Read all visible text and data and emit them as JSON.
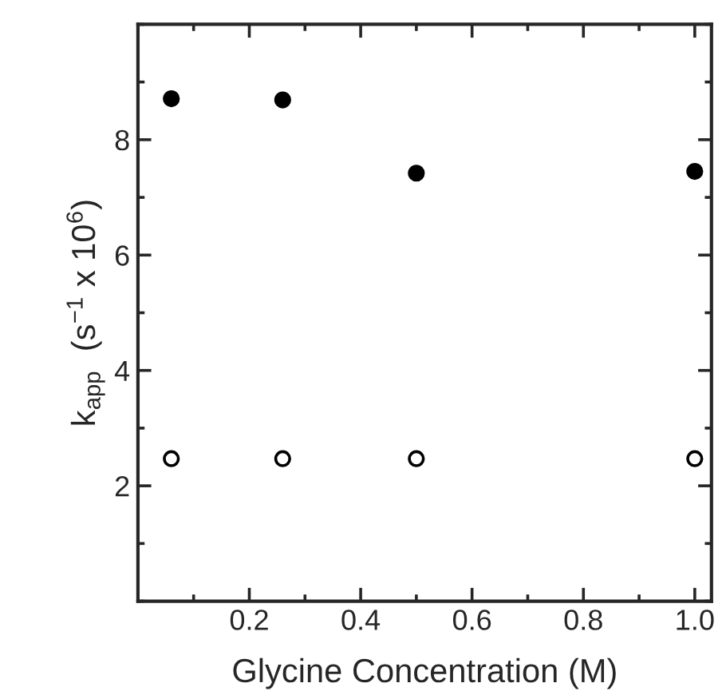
{
  "chart_data": {
    "type": "scatter",
    "xlabel": "Glycine Concentration (M)",
    "ylabel": "k$_{app}$  (s$^{−1}$ x 10$^{6}$)",
    "xlim": [
      0,
      1.03
    ],
    "ylim": [
      0,
      10
    ],
    "xticks": [
      {
        "value": 0.2,
        "label": "0.2"
      },
      {
        "value": 0.4,
        "label": "0.4"
      },
      {
        "value": 0.6,
        "label": "0.6"
      },
      {
        "value": 0.8,
        "label": "0.8"
      },
      {
        "value": 1.0,
        "label": "1.0"
      }
    ],
    "yticks": [
      2,
      4,
      6,
      8
    ],
    "marker": "circle",
    "grid": false,
    "legend": false,
    "series": [
      {
        "color": "#000000",
        "x": [
          0.06,
          0.26,
          0.5,
          1.0
        ],
        "values": [
          8.71,
          8.69,
          7.42,
          7.45
        ]
      },
      {
        "color": "#ffffff",
        "x": [
          0.06,
          0.26,
          0.5,
          1.0
        ],
        "values": [
          2.47,
          2.47,
          2.47,
          2.47
        ]
      }
    ]
  }
}
